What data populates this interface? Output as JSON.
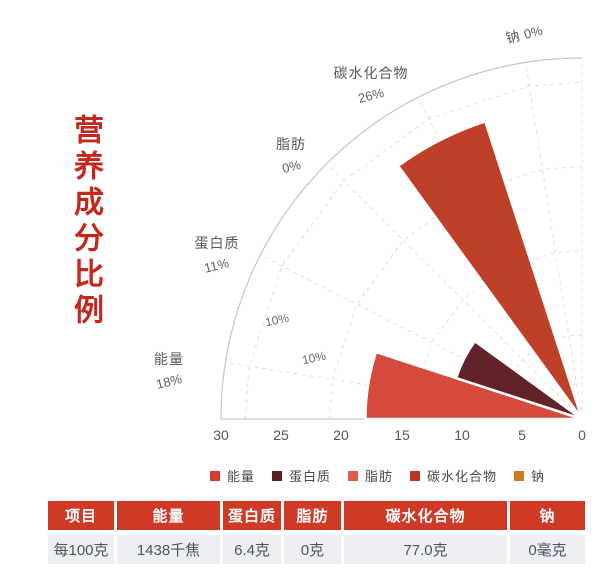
{
  "title": {
    "text": "营养成分比例"
  },
  "chart_data": {
    "type": "rose",
    "title": "营养成分比例",
    "unit": "%",
    "radial_axis": {
      "min": 0,
      "max": 30,
      "ticks": [
        "30",
        "25",
        "20",
        "15",
        "10",
        "5",
        "0"
      ]
    },
    "grid": {
      "rings_dashed": true,
      "ring_values": [
        7,
        14,
        21,
        28
      ],
      "spoke_angles_deg": [
        9,
        27,
        45,
        63,
        81,
        90
      ]
    },
    "categories": [
      {
        "name": "能量",
        "value": 18,
        "label": "18%",
        "color": "#d44b3d"
      },
      {
        "name": "蛋白质",
        "value": 11,
        "label": "11%",
        "color": "#61222a"
      },
      {
        "name": "脂肪",
        "value": 0,
        "label": "0%",
        "color": "#e05a4e"
      },
      {
        "name": "碳水化合物",
        "value": 26,
        "label": "26%",
        "color": "#bf4028"
      },
      {
        "name": "钠",
        "value": 0,
        "label": "0%",
        "color": "#c97b24"
      }
    ],
    "grid_labels": [
      "10%",
      "10%"
    ]
  },
  "legend": {
    "items": [
      {
        "label": "能量",
        "color": "#d23c2c"
      },
      {
        "label": "蛋白质",
        "color": "#5c1e22"
      },
      {
        "label": "脂肪",
        "color": "#e05a4e"
      },
      {
        "label": "碳水化合物",
        "color": "#b93722"
      },
      {
        "label": "钠",
        "color": "#c97b24"
      }
    ]
  },
  "table": {
    "headers": [
      "项目",
      "能量",
      "蛋白质",
      "脂肪",
      "碳水化合物",
      "钠"
    ],
    "rows": [
      [
        "每100克",
        "1438千焦",
        "6.4克",
        "0克",
        "77.0克",
        "0毫克"
      ]
    ]
  }
}
